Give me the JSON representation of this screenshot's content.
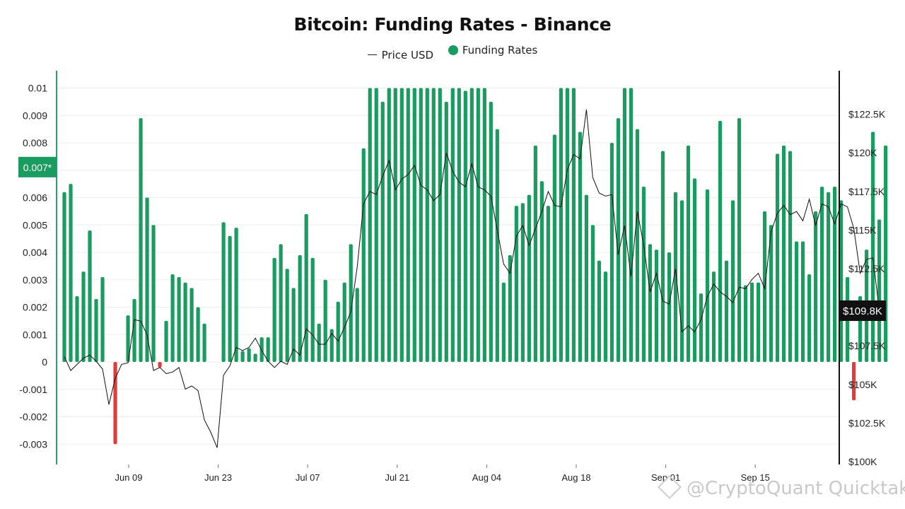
{
  "colors": {
    "positive": "#1a9b60",
    "negative": "#e03c3c",
    "price_line": "#111111",
    "axis": "#2e9e6a",
    "highlight_bg": "#1a9b60",
    "last_price_bg": "#111111"
  },
  "watermark": "@CryptoQuant Quicktak",
  "chart_data": {
    "type": "bar+line",
    "title": "Bitcoin: Funding Rates - Binance",
    "legend": [
      "Price USD",
      "Funding Rates"
    ],
    "legend_position": "top-center",
    "grid": true,
    "x_ticks": [
      "Jun 09",
      "Jun 23",
      "Jul 07",
      "Jul 21",
      "Aug 04",
      "Aug 18",
      "Sep 01",
      "Sep 15"
    ],
    "y_left": {
      "ylim": [
        -0.0037,
        0.0101
      ],
      "ticks": [
        "0.01",
        "0.009",
        "0.008",
        "0.007",
        "0.006",
        "0.005",
        "0.004",
        "0.003",
        "0.002",
        "0.001",
        "0",
        "-0.001",
        "-0.002",
        "-0.003"
      ],
      "highlight": {
        "value": 0.0071,
        "label": "0.007*"
      }
    },
    "y_right": {
      "ylim": [
        100000,
        124000
      ],
      "ticks": [
        "$122.5K",
        "$120K",
        "$117.5K",
        "$115K",
        "$112.5K",
        "$110K",
        "$107.5K",
        "$105K",
        "$102.5K",
        "$100K"
      ],
      "last_value_label": "$109.8K",
      "last_value": 109800
    },
    "funding_rates": [
      0.0062,
      0.0065,
      0.0024,
      0.0033,
      0.0048,
      0.0023,
      0.0031,
      0,
      -0.003,
      0,
      0.0017,
      0.0023,
      0.0089,
      0.006,
      0.005,
      -0.0002,
      0.0015,
      0.0032,
      0.0031,
      0.0029,
      0.0027,
      0.002,
      0.0014,
      0,
      0,
      0.0051,
      0.0046,
      0.0049,
      0.0004,
      0.0005,
      0.0003,
      0.0009,
      0.0009,
      0.0038,
      0.0043,
      0.0034,
      0.0027,
      0.0039,
      0.0054,
      0.0038,
      0.0014,
      0.003,
      0.0012,
      0.0022,
      0.0029,
      0.0043,
      0.0027,
      0.0078,
      0.01,
      0.01,
      0.0095,
      0.01,
      0.01,
      0.01,
      0.01,
      0.01,
      0.01,
      0.01,
      0.01,
      0.01,
      0.0095,
      0.01,
      0.01,
      0.0099,
      0.01,
      0.01,
      0.01,
      0.0095,
      0.0085,
      0.0029,
      0.0039,
      0.0057,
      0.0058,
      0.0061,
      0.0079,
      0.0066,
      0.0057,
      0.0083,
      0.01,
      0.01,
      0.01,
      0.0084,
      0.0061,
      0.005,
      0.0037,
      0.0033,
      0.008,
      0.0089,
      0.01,
      0.01,
      0.0085,
      0.0064,
      0.0043,
      0.0041,
      0.0077,
      0.004,
      0.0062,
      0.0059,
      0.0079,
      0.0067,
      0.0025,
      0.0063,
      0.0033,
      0.0088,
      0.0037,
      0.0059,
      0.0089,
      0.0028,
      0.0029,
      0.0029,
      0.0055,
      0.005,
      0.0076,
      0.0079,
      0.0077,
      0.0044,
      0.0044,
      0.0032,
      0.0055,
      0.0064,
      0.0062,
      0.0064,
      0.0059,
      0.0031,
      -0.0014,
      0.0024,
      0.0041,
      0.0084,
      0.0052,
      0.0079
    ],
    "price_usd": [
      106800,
      105900,
      106300,
      106700,
      106900,
      106500,
      106000,
      103700,
      105400,
      106300,
      106400,
      109200,
      109100,
      108200,
      105900,
      106100,
      105700,
      105800,
      106100,
      104700,
      104900,
      104600,
      102700,
      101900,
      100900,
      105600,
      106200,
      107400,
      107200,
      107400,
      108000,
      107200,
      106500,
      106100,
      106500,
      106300,
      107300,
      106900,
      108600,
      108200,
      107600,
      107600,
      108300,
      107800,
      108700,
      109700,
      112600,
      116700,
      117500,
      117300,
      118500,
      119500,
      117600,
      118300,
      118600,
      119200,
      117900,
      117600,
      116900,
      117300,
      120000,
      118800,
      118100,
      117800,
      119300,
      117800,
      117600,
      117200,
      115000,
      112800,
      112200,
      114600,
      115300,
      114000,
      115100,
      116200,
      117500,
      116600,
      116500,
      118900,
      119900,
      119600,
      122800,
      118400,
      117400,
      117200,
      117300,
      113400,
      115300,
      112000,
      116200,
      114000,
      111000,
      112200,
      110400,
      110200,
      112500,
      108400,
      108800,
      108400,
      109200,
      110700,
      111500,
      111000,
      110700,
      110300,
      111300,
      111200,
      111800,
      112200,
      111200,
      114900,
      116100,
      116600,
      116000,
      116200,
      115600,
      117000,
      115300,
      116700,
      116500,
      115400,
      116700,
      116500,
      115100,
      112200,
      113100,
      113200,
      109800
    ]
  }
}
